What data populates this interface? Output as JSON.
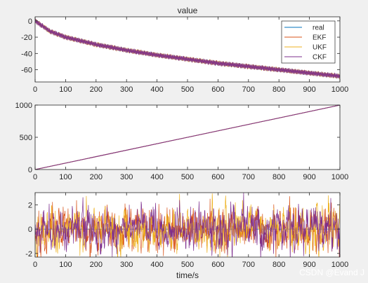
{
  "watermark": "CSDN @Evand J",
  "colors": {
    "real": "#0072BD",
    "EKF": "#D95319",
    "UKF": "#EDB120",
    "CKF": "#7E2F8E",
    "axes_bg": "#ffffff",
    "figure_bg": "#f0f0f0"
  },
  "chart_data": [
    {
      "type": "line",
      "title": "value",
      "xlabel": "",
      "ylabel": "",
      "xlim": [
        0,
        1000
      ],
      "ylim": [
        -75,
        5
      ],
      "xticks": [
        0,
        100,
        200,
        300,
        400,
        500,
        600,
        700,
        800,
        900,
        1000
      ],
      "yticks": [
        -60,
        -40,
        -20,
        0
      ],
      "legend": {
        "position": "top-right",
        "entries": [
          "real",
          "EKF",
          "UKF",
          "CKF"
        ]
      },
      "trend": {
        "x": [
          0,
          50,
          100,
          200,
          300,
          400,
          500,
          600,
          700,
          800,
          900,
          1000
        ],
        "y": [
          0,
          -13,
          -20,
          -29,
          -36,
          -42,
          -47,
          -52,
          -56,
          -60,
          -64,
          -68
        ]
      },
      "oscillation_amplitude": 3,
      "series": [
        {
          "name": "real"
        },
        {
          "name": "EKF"
        },
        {
          "name": "UKF"
        },
        {
          "name": "CKF"
        }
      ]
    },
    {
      "type": "line",
      "title": "",
      "xlabel": "",
      "ylabel": "",
      "xlim": [
        0,
        1000
      ],
      "ylim": [
        0,
        1000
      ],
      "xticks": [
        0,
        100,
        200,
        300,
        400,
        500,
        600,
        700,
        800,
        900,
        1000
      ],
      "yticks": [
        0,
        500,
        1000
      ],
      "series": [
        {
          "x": [
            0,
            1000
          ],
          "y": [
            0,
            1000
          ]
        }
      ]
    },
    {
      "type": "line",
      "title": "",
      "xlabel": "time/s",
      "ylabel": "",
      "xlim": [
        0,
        1000
      ],
      "ylim": [
        -2.3,
        3
      ],
      "xticks": [
        0,
        100,
        200,
        300,
        400,
        500,
        600,
        700,
        800,
        900,
        1000
      ],
      "yticks": [
        -2,
        0,
        2
      ],
      "noise_std": 0.8,
      "series": [
        {
          "name": "real",
          "constant": 0
        },
        {
          "name": "EKF"
        },
        {
          "name": "UKF"
        },
        {
          "name": "CKF"
        }
      ]
    }
  ]
}
